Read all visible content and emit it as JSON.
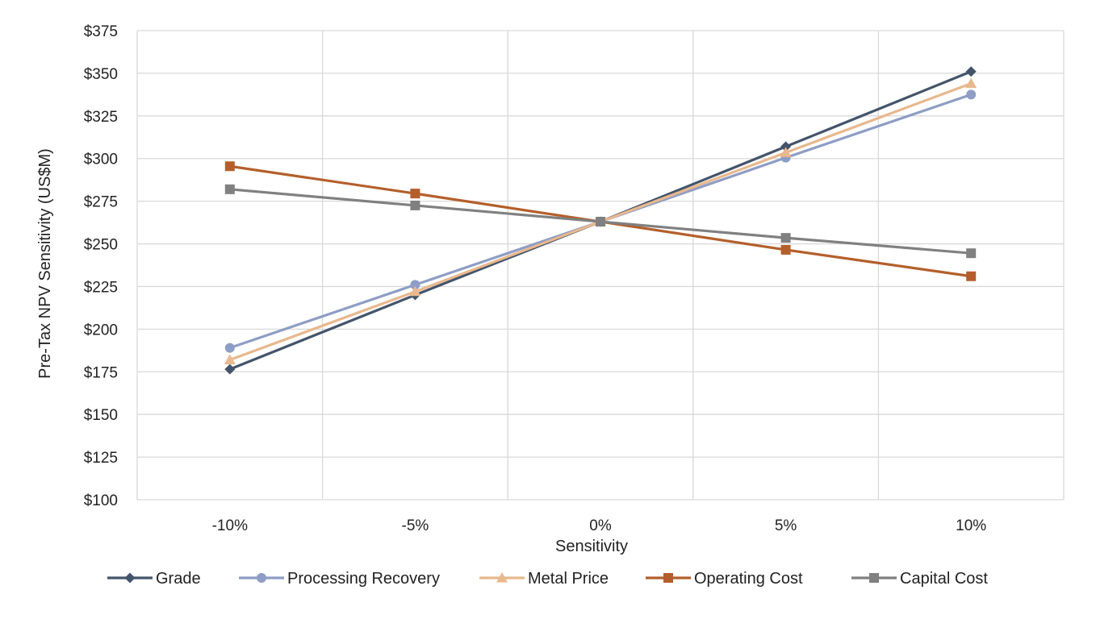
{
  "chart_data": {
    "type": "line",
    "title": "",
    "xlabel": "Sensitivity",
    "ylabel": "Pre-Tax NPV Sensitivity (US$M)",
    "categories": [
      "-10%",
      "-5%",
      "0%",
      "5%",
      "10%"
    ],
    "ylim": [
      100,
      375
    ],
    "yticks": [
      100,
      125,
      150,
      175,
      200,
      225,
      250,
      275,
      300,
      325,
      350,
      375
    ],
    "ytick_labels": [
      "$100",
      "$125",
      "$150",
      "$175",
      "$200",
      "$225",
      "$250",
      "$275",
      "$300",
      "$325",
      "$350",
      "$375"
    ],
    "grid": true,
    "legend_position": "bottom",
    "series": [
      {
        "name": "Grade",
        "values": [
          176.5,
          220,
          263,
          307,
          351
        ],
        "color": "#44546a",
        "marker": "diamond"
      },
      {
        "name": "Processing Recovery",
        "values": [
          189,
          226,
          263,
          300.5,
          337.5
        ],
        "color": "#8e9dc5",
        "marker": "circle"
      },
      {
        "name": "Metal Price",
        "values": [
          182,
          222,
          263,
          303.5,
          344
        ],
        "color": "#e8b88e",
        "marker": "triangle"
      },
      {
        "name": "Operating Cost",
        "values": [
          295.5,
          279.5,
          263,
          246.5,
          231
        ],
        "color": "#b45f2b",
        "marker": "square"
      },
      {
        "name": "Capital Cost",
        "values": [
          282,
          272.5,
          263,
          253.5,
          244.5
        ],
        "color": "#808080",
        "marker": "square"
      }
    ]
  }
}
